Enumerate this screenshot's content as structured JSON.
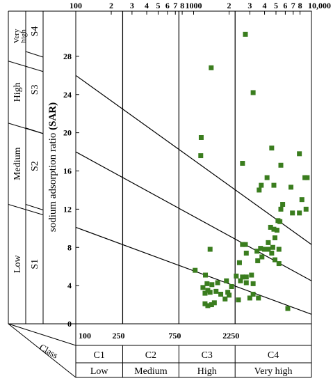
{
  "chart_data": {
    "type": "scatter",
    "title": "",
    "xlabel": "",
    "ylabel_parts": [
      "sodium adsorption ratio ",
      "(SAR)"
    ],
    "x_scale": "log",
    "xlim": [
      100,
      10000
    ],
    "ylim": [
      0,
      32
    ],
    "top_ticks": [
      {
        "x": 100,
        "label": "100"
      },
      {
        "x": 200,
        "label": "2"
      },
      {
        "x": 300,
        "label": "3"
      },
      {
        "x": 400,
        "label": "4"
      },
      {
        "x": 500,
        "label": "5"
      },
      {
        "x": 600,
        "label": "6"
      },
      {
        "x": 700,
        "label": "7"
      },
      {
        "x": 800,
        "label": "8"
      },
      {
        "x": 1000,
        "label": "1000"
      },
      {
        "x": 2000,
        "label": "2"
      },
      {
        "x": 3000,
        "label": "3"
      },
      {
        "x": 4000,
        "label": "4"
      },
      {
        "x": 5000,
        "label": "5"
      },
      {
        "x": 6000,
        "label": "6"
      },
      {
        "x": 7000,
        "label": "7"
      },
      {
        "x": 8000,
        "label": "8"
      },
      {
        "x": 10000,
        "label": "10,000"
      }
    ],
    "y_ticks": [
      0,
      4,
      8,
      12,
      16,
      20,
      24,
      28
    ],
    "bottom_ticks": [
      {
        "x": 100,
        "label": "100"
      },
      {
        "x": 250,
        "label": "250"
      },
      {
        "x": 750,
        "label": "750"
      },
      {
        "x": 2250,
        "label": "2250"
      }
    ],
    "boundaries_x": [
      250,
      750,
      2250
    ],
    "sar_lines": [
      {
        "x": [
          100,
          10000
        ],
        "y": [
          10.1,
          1
        ]
      },
      {
        "x": [
          100,
          10000
        ],
        "y": [
          18,
          4.5
        ]
      },
      {
        "x": [
          100,
          10000
        ],
        "y": [
          26,
          8.3
        ]
      }
    ],
    "salinity_classes": {
      "header": "Class",
      "codes": [
        "C1",
        "C2",
        "C3",
        "C4"
      ],
      "names": [
        "Low",
        "Medium",
        "High",
        "Very high"
      ]
    },
    "sodium_classes": {
      "codes": [
        "S1",
        "S2",
        "S3",
        "S4"
      ],
      "names": [
        "Low",
        "Medium",
        "High",
        "Very high"
      ],
      "name_bounds": [
        [
          0,
          12.5
        ],
        [
          12.5,
          21
        ],
        [
          21,
          27.5
        ],
        [
          27.5,
          32
        ]
      ],
      "code_bounds": [
        [
          0,
          12.5
        ],
        [
          12.5,
          20.5
        ],
        [
          20.5,
          28.5
        ],
        [
          28.5,
          32
        ]
      ]
    },
    "point_color": "#3a7d1e",
    "points": [
      [
        1410,
        26.8
      ],
      [
        2750,
        30.3
      ],
      [
        3200,
        24.2
      ],
      [
        1160,
        19.5
      ],
      [
        1150,
        17.6
      ],
      [
        2600,
        16.8
      ],
      [
        4600,
        18.4
      ],
      [
        7900,
        17.8
      ],
      [
        3750,
        14.5
      ],
      [
        4200,
        15.3
      ],
      [
        5500,
        16.6
      ],
      [
        4800,
        14.5
      ],
      [
        3600,
        14.0
      ],
      [
        6700,
        14.3
      ],
      [
        8800,
        15.3
      ],
      [
        9200,
        15.3
      ],
      [
        8300,
        13.0
      ],
      [
        5700,
        12.5
      ],
      [
        5500,
        12.0
      ],
      [
        9000,
        12.0
      ],
      [
        6900,
        11.6
      ],
      [
        7900,
        11.6
      ],
      [
        5400,
        10.7
      ],
      [
        5200,
        10.8
      ],
      [
        4800,
        9.9
      ],
      [
        5100,
        9.8
      ],
      [
        4500,
        10.1
      ],
      [
        4900,
        9.0
      ],
      [
        4700,
        8.0
      ],
      [
        4300,
        8.5
      ],
      [
        3700,
        7.9
      ],
      [
        3450,
        7.6
      ],
      [
        4000,
        7.8
      ],
      [
        4300,
        7.8
      ],
      [
        3800,
        7.0
      ],
      [
        4600,
        7.4
      ],
      [
        3500,
        6.6
      ],
      [
        4900,
        6.7
      ],
      [
        5300,
        7.8
      ],
      [
        5300,
        6.3
      ],
      [
        2750,
        8.3
      ],
      [
        2600,
        8.3
      ],
      [
        2800,
        7.4
      ],
      [
        1380,
        7.8
      ],
      [
        2450,
        6.4
      ],
      [
        1030,
        5.6
      ],
      [
        1260,
        5.1
      ],
      [
        2300,
        5.0
      ],
      [
        2600,
        4.9
      ],
      [
        2800,
        4.9
      ],
      [
        3100,
        5.1
      ],
      [
        2500,
        4.5
      ],
      [
        2800,
        4.3
      ],
      [
        3200,
        4.2
      ],
      [
        1300,
        4.2
      ],
      [
        1430,
        4.1
      ],
      [
        1600,
        4.3
      ],
      [
        1900,
        4.5
      ],
      [
        2100,
        3.9
      ],
      [
        1200,
        3.8
      ],
      [
        1320,
        3.5
      ],
      [
        1550,
        3.4
      ],
      [
        1700,
        3.1
      ],
      [
        1250,
        3.2
      ],
      [
        1380,
        3.3
      ],
      [
        1950,
        3.3
      ],
      [
        2000,
        3.0
      ],
      [
        2400,
        2.5
      ],
      [
        3000,
        2.7
      ],
      [
        3200,
        3.1
      ],
      [
        3550,
        2.7
      ],
      [
        1850,
        2.6
      ],
      [
        1250,
        2.1
      ],
      [
        1320,
        1.9
      ],
      [
        1420,
        2.0
      ],
      [
        1500,
        2.2
      ],
      [
        6300,
        1.6
      ]
    ]
  }
}
